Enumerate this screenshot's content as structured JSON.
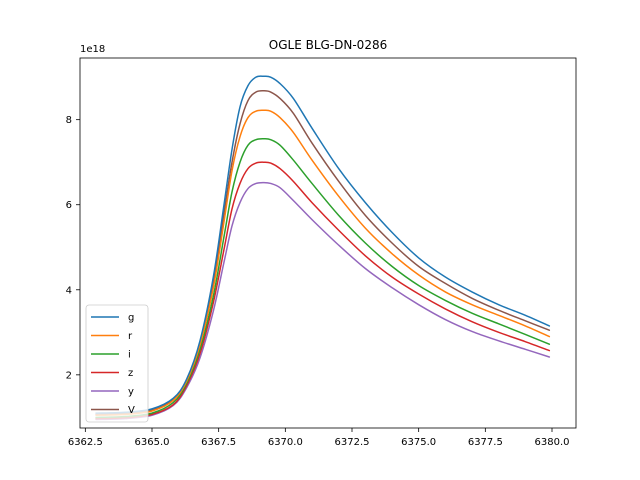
{
  "chart_data": {
    "type": "line",
    "title": "OGLE BLG-DN-0286",
    "xlabel": "",
    "ylabel": "",
    "y_offset_text": "1e18",
    "y_inverted": true,
    "xlim": [
      6362.3,
      6380.9
    ],
    "ylim": [
      9.45,
      0.75
    ],
    "x_ticks": [
      6362.5,
      6365.0,
      6367.5,
      6370.0,
      6372.5,
      6375.0,
      6377.5,
      6380.0
    ],
    "x_tick_labels": [
      "6362.5",
      "6365.0",
      "6367.5",
      "6370.0",
      "6372.5",
      "6375.0",
      "6377.5",
      "6380.0"
    ],
    "y_ticks": [
      2,
      4,
      6,
      8
    ],
    "y_tick_labels": [
      "2",
      "4",
      "6",
      "8"
    ],
    "grid": false,
    "legend_position": "lower-left",
    "series": [
      {
        "name": "g",
        "color": "#1f77b4",
        "x": [
          6362.9,
          6364.0,
          6365.0,
          6365.8,
          6366.3,
          6366.8,
          6367.3,
          6367.7,
          6368.0,
          6368.3,
          6368.6,
          6368.9,
          6369.2,
          6369.45,
          6369.8,
          6370.3,
          6371.0,
          6372.0,
          6373.0,
          6374.0,
          6375.0,
          6376.0,
          6377.0,
          6378.0,
          6379.0,
          6379.9
        ],
        "y": [
          1.1,
          1.12,
          1.2,
          1.45,
          1.9,
          2.8,
          4.3,
          6.0,
          7.3,
          8.3,
          8.8,
          9.0,
          9.02,
          9.0,
          8.85,
          8.5,
          7.8,
          6.85,
          6.05,
          5.35,
          4.75,
          4.3,
          3.95,
          3.65,
          3.4,
          3.15
        ]
      },
      {
        "name": "r",
        "color": "#ff7f0e",
        "x": [
          6362.9,
          6364.0,
          6365.0,
          6365.8,
          6366.3,
          6366.8,
          6367.3,
          6367.7,
          6368.0,
          6368.3,
          6368.6,
          6368.9,
          6369.2,
          6369.45,
          6369.8,
          6370.3,
          6371.0,
          6372.0,
          6373.0,
          6374.0,
          6375.0,
          6376.0,
          6377.0,
          6378.0,
          6379.0,
          6379.9
        ],
        "y": [
          1.05,
          1.07,
          1.15,
          1.4,
          1.85,
          2.7,
          4.05,
          5.6,
          6.8,
          7.6,
          8.05,
          8.2,
          8.22,
          8.2,
          8.05,
          7.7,
          7.05,
          6.2,
          5.45,
          4.85,
          4.35,
          3.95,
          3.65,
          3.4,
          3.15,
          2.9
        ]
      },
      {
        "name": "i",
        "color": "#2ca02c",
        "x": [
          6362.9,
          6364.0,
          6365.0,
          6365.8,
          6366.3,
          6366.8,
          6367.3,
          6367.7,
          6368.0,
          6368.3,
          6368.6,
          6368.9,
          6369.2,
          6369.45,
          6369.8,
          6370.3,
          6371.0,
          6372.0,
          6373.0,
          6374.0,
          6375.0,
          6376.0,
          6377.0,
          6378.0,
          6379.0,
          6379.9
        ],
        "y": [
          1.0,
          1.02,
          1.1,
          1.35,
          1.8,
          2.6,
          3.85,
          5.25,
          6.3,
          7.0,
          7.4,
          7.53,
          7.55,
          7.53,
          7.4,
          7.05,
          6.5,
          5.75,
          5.1,
          4.55,
          4.1,
          3.75,
          3.45,
          3.2,
          2.95,
          2.72
        ]
      },
      {
        "name": "z",
        "color": "#d62728",
        "x": [
          6362.9,
          6364.0,
          6365.0,
          6365.8,
          6366.3,
          6366.8,
          6367.3,
          6367.7,
          6368.0,
          6368.3,
          6368.6,
          6368.9,
          6369.2,
          6369.45,
          6369.8,
          6370.3,
          6371.0,
          6372.0,
          6373.0,
          6374.0,
          6375.0,
          6376.0,
          6377.0,
          6378.0,
          6379.0,
          6379.9
        ],
        "y": [
          0.97,
          0.99,
          1.07,
          1.3,
          1.75,
          2.5,
          3.7,
          4.95,
          5.9,
          6.5,
          6.85,
          6.98,
          7.0,
          6.98,
          6.85,
          6.55,
          6.05,
          5.4,
          4.8,
          4.3,
          3.9,
          3.55,
          3.25,
          3.0,
          2.78,
          2.57
        ]
      },
      {
        "name": "y",
        "color": "#9467bd",
        "x": [
          6362.9,
          6364.0,
          6365.0,
          6365.8,
          6366.3,
          6366.8,
          6367.3,
          6367.7,
          6368.0,
          6368.3,
          6368.6,
          6368.9,
          6369.2,
          6369.45,
          6369.8,
          6370.3,
          6371.0,
          6372.0,
          6373.0,
          6374.0,
          6375.0,
          6376.0,
          6377.0,
          6378.0,
          6379.0,
          6379.9
        ],
        "y": [
          0.95,
          0.97,
          1.05,
          1.28,
          1.7,
          2.4,
          3.5,
          4.65,
          5.5,
          6.05,
          6.38,
          6.5,
          6.52,
          6.5,
          6.4,
          6.1,
          5.65,
          5.05,
          4.5,
          4.05,
          3.65,
          3.3,
          3.02,
          2.8,
          2.6,
          2.42
        ]
      },
      {
        "name": "V",
        "color": "#8c564b",
        "x": [
          6362.9,
          6364.0,
          6365.0,
          6365.8,
          6366.3,
          6366.8,
          6367.3,
          6367.7,
          6368.0,
          6368.3,
          6368.6,
          6368.9,
          6369.2,
          6369.45,
          6369.8,
          6370.3,
          6371.0,
          6372.0,
          6373.0,
          6374.0,
          6375.0,
          6376.0,
          6377.0,
          6378.0,
          6379.0,
          6379.9
        ],
        "y": [
          1.07,
          1.09,
          1.17,
          1.42,
          1.88,
          2.75,
          4.15,
          5.8,
          7.0,
          7.9,
          8.45,
          8.65,
          8.68,
          8.65,
          8.5,
          8.15,
          7.45,
          6.55,
          5.75,
          5.1,
          4.55,
          4.15,
          3.8,
          3.52,
          3.27,
          3.05
        ]
      }
    ]
  }
}
